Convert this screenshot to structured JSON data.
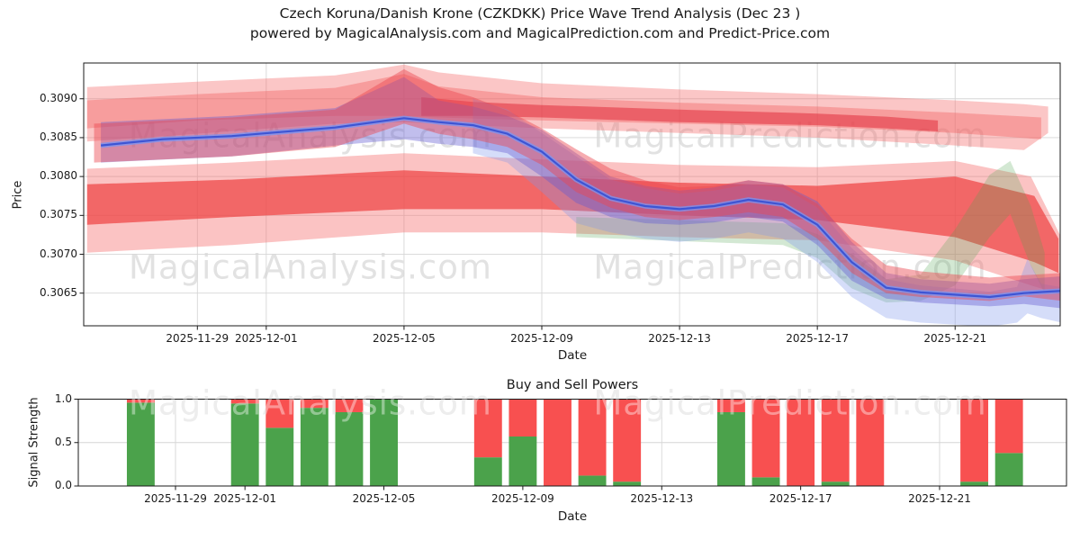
{
  "title": {
    "line1": "Czech Koruna/Danish Krone (CZKDKK) Price Wave Trend Analysis (Dec 23 )",
    "line2": "powered by MagicalAnalysis.com and MagicalPrediction.com and Predict-Price.com"
  },
  "watermarks": {
    "analysis": "MagicalAnalysis.com",
    "prediction": "MagicalPrediction.com"
  },
  "colors": {
    "buy_green": "#4ba24b",
    "sell_red": "#f85050",
    "blue_line": "#3d55d4",
    "blue_glow": "rgba(120,150,245,0.75)",
    "grid": "#d6d6d6",
    "spine": "#1a1a1a"
  },
  "chart_data": [
    {
      "id": "price",
      "type": "area",
      "xlabel": "Date",
      "ylabel": "Price",
      "grid": true,
      "ylim": [
        0.30608,
        0.30946
      ],
      "x_day0_date": "2025-11-26",
      "yticks": [
        {
          "label": "0.3090",
          "value": 0.309
        },
        {
          "label": "0.3085",
          "value": 0.3085
        },
        {
          "label": "0.3080",
          "value": 0.308
        },
        {
          "label": "0.3075",
          "value": 0.3075
        },
        {
          "label": "0.3070",
          "value": 0.307
        },
        {
          "label": "0.3065",
          "value": 0.3065
        }
      ],
      "xticks": [
        {
          "label": "2025-11-29",
          "day": 3
        },
        {
          "label": "2025-12-01",
          "day": 5
        },
        {
          "label": "2025-12-05",
          "day": 9
        },
        {
          "label": "2025-12-09",
          "day": 13
        },
        {
          "label": "2025-12-13",
          "day": 17
        },
        {
          "label": "2025-12-17",
          "day": 21
        },
        {
          "label": "2025-12-21",
          "day": 25
        }
      ],
      "bands": [
        {
          "name": "upper-envelope-pink",
          "color": "rgba(246,112,112,0.40)",
          "points": [
            [
              -0.2,
              0.30845,
              0.30915
            ],
            [
              3,
              0.30855,
              0.30922
            ],
            [
              7,
              0.30868,
              0.3093
            ],
            [
              9,
              0.3087,
              0.30944
            ],
            [
              10,
              0.30868,
              0.30934
            ],
            [
              13,
              0.30862,
              0.3092
            ],
            [
              17,
              0.30856,
              0.30912
            ],
            [
              21,
              0.3085,
              0.30906
            ],
            [
              25,
              0.3084,
              0.30898
            ],
            [
              27.0,
              0.30834,
              0.30893
            ],
            [
              27.7,
              0.30856,
              0.3089
            ]
          ]
        },
        {
          "name": "upper-inner-red",
          "color": "rgba(242,95,95,0.40)",
          "points": [
            [
              -0.2,
              0.30862,
              0.30898
            ],
            [
              3,
              0.30872,
              0.30906
            ],
            [
              7,
              0.30878,
              0.30914
            ],
            [
              9,
              0.30878,
              0.30932
            ],
            [
              10,
              0.30876,
              0.30916
            ],
            [
              13,
              0.30872,
              0.30902
            ],
            [
              17,
              0.30868,
              0.30895
            ],
            [
              21,
              0.30864,
              0.3089
            ],
            [
              25,
              0.30856,
              0.30882
            ],
            [
              27.5,
              0.30848,
              0.30876
            ]
          ]
        },
        {
          "name": "dark-red-stripe",
          "color": "rgba(225,45,60,0.55)",
          "points": [
            [
              9.5,
              0.30878,
              0.30902
            ],
            [
              11,
              0.30878,
              0.30896
            ],
            [
              13,
              0.30876,
              0.30892
            ],
            [
              17,
              0.3087,
              0.30886
            ],
            [
              21,
              0.30866,
              0.30881
            ],
            [
              23,
              0.30862,
              0.30877
            ],
            [
              24.5,
              0.30858,
              0.30872
            ]
          ]
        },
        {
          "name": "lower-envelope-pink",
          "color": "rgba(246,112,112,0.42)",
          "points": [
            [
              -0.2,
              0.30702,
              0.3081
            ],
            [
              4,
              0.30712,
              0.30818
            ],
            [
              9,
              0.30728,
              0.3083
            ],
            [
              13,
              0.30728,
              0.30822
            ],
            [
              17,
              0.30722,
              0.30815
            ],
            [
              21,
              0.30718,
              0.30812
            ],
            [
              25,
              0.30692,
              0.3082
            ],
            [
              27.2,
              0.3066,
              0.308
            ],
            [
              28.1,
              0.30648,
              0.3072
            ]
          ]
        },
        {
          "name": "lower-core-red",
          "color": "rgba(238,64,64,0.70)",
          "points": [
            [
              -0.2,
              0.30738,
              0.3079
            ],
            [
              4,
              0.30748,
              0.30796
            ],
            [
              9,
              0.30758,
              0.30808
            ],
            [
              13,
              0.30758,
              0.308
            ],
            [
              17,
              0.3075,
              0.30792
            ],
            [
              21,
              0.30744,
              0.30788
            ],
            [
              25,
              0.30722,
              0.308
            ],
            [
              27.3,
              0.3069,
              0.30775
            ],
            [
              28.0,
              0.30676,
              0.3072
            ]
          ]
        },
        {
          "name": "green-signal-band",
          "color": "rgba(80,165,80,0.25)",
          "points": [
            [
              14,
              0.30722,
              0.30748
            ],
            [
              17,
              0.30717,
              0.30744
            ],
            [
              20,
              0.30712,
              0.3074
            ],
            [
              21,
              0.30695,
              0.30726
            ],
            [
              22,
              0.30656,
              0.307
            ],
            [
              23,
              0.30638,
              0.30668
            ],
            [
              24,
              0.3064,
              0.30674
            ],
            [
              25,
              0.3066,
              0.30732
            ],
            [
              26,
              0.30722,
              0.30802
            ],
            [
              26.6,
              0.30752,
              0.3082
            ],
            [
              27.2,
              0.30685,
              0.30762
            ],
            [
              27.6,
              0.3065,
              0.30702
            ]
          ]
        },
        {
          "name": "outer-blue-glow-band",
          "color": "rgba(125,150,235,0.32)",
          "points": [
            [
              11,
              0.3083,
              0.309
            ],
            [
              12,
              0.30818,
              0.30886
            ],
            [
              13,
              0.3078,
              0.30856
            ],
            [
              14,
              0.3074,
              0.30826
            ],
            [
              15,
              0.30728,
              0.30796
            ],
            [
              16,
              0.3072,
              0.30785
            ],
            [
              17,
              0.30716,
              0.30778
            ],
            [
              18,
              0.3072,
              0.30782
            ],
            [
              19,
              0.30728,
              0.3079
            ],
            [
              20,
              0.3072,
              0.30786
            ],
            [
              21,
              0.3069,
              0.3076
            ],
            [
              22,
              0.30645,
              0.30708
            ],
            [
              23,
              0.30618,
              0.30668
            ],
            [
              24,
              0.30612,
              0.3066
            ],
            [
              26,
              0.30607,
              0.30652
            ],
            [
              26.8,
              0.30612,
              0.30658
            ],
            [
              27.1,
              0.30624,
              0.30694
            ],
            [
              27.5,
              0.30618,
              0.30662
            ],
            [
              28.3,
              0.3061,
              0.30656
            ]
          ]
        },
        {
          "name": "main-blue-wave-band",
          "color": "rgba(100,92,210,0.40)",
          "points": [
            [
              0.2,
              0.30818,
              0.3087
            ],
            [
              4,
              0.30826,
              0.30878
            ],
            [
              7,
              0.3084,
              0.30888
            ],
            [
              9,
              0.30848,
              0.30928
            ],
            [
              10,
              0.30842,
              0.30898
            ],
            [
              11,
              0.30838,
              0.3089
            ],
            [
              12,
              0.3083,
              0.30878
            ],
            [
              13,
              0.308,
              0.3086
            ],
            [
              14,
              0.30766,
              0.3083
            ],
            [
              15,
              0.30748,
              0.308
            ],
            [
              16,
              0.3074,
              0.30788
            ],
            [
              17,
              0.30738,
              0.30782
            ],
            [
              18,
              0.30741,
              0.30786
            ],
            [
              19,
              0.30748,
              0.30795
            ],
            [
              20,
              0.30742,
              0.3079
            ],
            [
              21,
              0.30712,
              0.30768
            ],
            [
              22,
              0.30666,
              0.30716
            ],
            [
              23,
              0.30643,
              0.30676
            ],
            [
              24,
              0.30638,
              0.30668
            ],
            [
              26,
              0.30633,
              0.30662
            ],
            [
              27,
              0.30636,
              0.30668
            ],
            [
              28.2,
              0.3063,
              0.30672
            ]
          ]
        },
        {
          "name": "tracking-red-wave-band",
          "color": "rgba(236,72,80,0.45)",
          "points": [
            [
              0,
              0.30818,
              0.30868
            ],
            [
              4,
              0.30826,
              0.30876
            ],
            [
              7,
              0.30838,
              0.30886
            ],
            [
              9,
              0.30868,
              0.30938
            ],
            [
              10,
              0.30855,
              0.30915
            ],
            [
              11,
              0.30848,
              0.30902
            ],
            [
              12,
              0.30838,
              0.30885
            ],
            [
              13,
              0.30815,
              0.30862
            ],
            [
              14,
              0.3078,
              0.30835
            ],
            [
              15,
              0.3076,
              0.3081
            ],
            [
              16,
              0.30748,
              0.30795
            ],
            [
              17,
              0.30744,
              0.30786
            ],
            [
              18,
              0.30748,
              0.30788
            ],
            [
              19,
              0.30754,
              0.30795
            ],
            [
              20,
              0.30748,
              0.3079
            ],
            [
              21,
              0.3072,
              0.30765
            ],
            [
              22,
              0.30676,
              0.3072
            ],
            [
              23,
              0.3065,
              0.30686
            ],
            [
              24,
              0.30645,
              0.30678
            ],
            [
              26,
              0.3064,
              0.3067
            ],
            [
              27,
              0.30646,
              0.30673
            ],
            [
              28.1,
              0.3064,
              0.30676
            ]
          ]
        }
      ],
      "lines": [
        {
          "name": "trend-line-blue",
          "points": [
            [
              0.2,
              0.3084
            ],
            [
              2,
              0.30848
            ],
            [
              4,
              0.30852
            ],
            [
              7,
              0.30863
            ],
            [
              9,
              0.30875
            ],
            [
              10,
              0.3087
            ],
            [
              11,
              0.30866
            ],
            [
              12,
              0.30855
            ],
            [
              13,
              0.30832
            ],
            [
              14,
              0.30796
            ],
            [
              15,
              0.30772
            ],
            [
              16,
              0.30762
            ],
            [
              17,
              0.30758
            ],
            [
              18,
              0.30762
            ],
            [
              19,
              0.3077
            ],
            [
              20,
              0.30764
            ],
            [
              21,
              0.30738
            ],
            [
              22,
              0.3069
            ],
            [
              23,
              0.30657
            ],
            [
              24,
              0.30651
            ],
            [
              26,
              0.30645
            ],
            [
              27,
              0.3065
            ],
            [
              28.1,
              0.30653
            ]
          ]
        }
      ]
    },
    {
      "id": "signal",
      "type": "bar",
      "title": "Buy and Sell Powers",
      "xlabel": "Date",
      "ylabel": "Signal Strength",
      "grid": true,
      "ylim": [
        0,
        1.0
      ],
      "yticks": [
        {
          "label": "1.0",
          "value": 1.0
        },
        {
          "label": "0.5",
          "value": 0.5
        },
        {
          "label": "0.0",
          "value": 0.0
        }
      ],
      "xticks": [
        {
          "label": "2025-11-29",
          "day": 3
        },
        {
          "label": "2025-12-01",
          "day": 5
        },
        {
          "label": "2025-12-05",
          "day": 9
        },
        {
          "label": "2025-12-09",
          "day": 13
        },
        {
          "label": "2025-12-13",
          "day": 17
        },
        {
          "label": "2025-12-17",
          "day": 21
        },
        {
          "label": "2025-12-21",
          "day": 25
        }
      ],
      "series_names": [
        "buy",
        "sell"
      ],
      "bars": [
        {
          "date": "2025-11-28",
          "day": 2,
          "buy": 0.96,
          "sell": 0.04
        },
        {
          "date": "2025-12-01",
          "day": 5,
          "buy": 0.95,
          "sell": 0.05
        },
        {
          "date": "2025-12-02",
          "day": 6,
          "buy": 0.67,
          "sell": 0.33
        },
        {
          "date": "2025-12-03",
          "day": 7,
          "buy": 0.9,
          "sell": 0.1
        },
        {
          "date": "2025-12-04",
          "day": 8,
          "buy": 0.85,
          "sell": 0.15
        },
        {
          "date": "2025-12-05",
          "day": 9,
          "buy": 1.0,
          "sell": 0.0
        },
        {
          "date": "2025-12-08",
          "day": 12,
          "buy": 0.33,
          "sell": 0.67
        },
        {
          "date": "2025-12-09",
          "day": 13,
          "buy": 0.57,
          "sell": 0.43
        },
        {
          "date": "2025-12-10",
          "day": 14,
          "buy": 0.0,
          "sell": 1.0
        },
        {
          "date": "2025-12-11",
          "day": 15,
          "buy": 0.12,
          "sell": 0.88
        },
        {
          "date": "2025-12-12",
          "day": 16,
          "buy": 0.05,
          "sell": 0.95
        },
        {
          "date": "2025-12-15",
          "day": 19,
          "buy": 0.85,
          "sell": 0.15
        },
        {
          "date": "2025-12-16",
          "day": 20,
          "buy": 0.1,
          "sell": 0.9
        },
        {
          "date": "2025-12-17",
          "day": 21,
          "buy": 0.0,
          "sell": 1.0
        },
        {
          "date": "2025-12-18",
          "day": 22,
          "buy": 0.05,
          "sell": 0.95
        },
        {
          "date": "2025-12-19",
          "day": 23,
          "buy": 0.0,
          "sell": 1.0
        },
        {
          "date": "2025-12-22",
          "day": 26,
          "buy": 0.05,
          "sell": 0.95
        },
        {
          "date": "2025-12-23",
          "day": 27,
          "buy": 0.38,
          "sell": 0.62
        }
      ]
    }
  ]
}
